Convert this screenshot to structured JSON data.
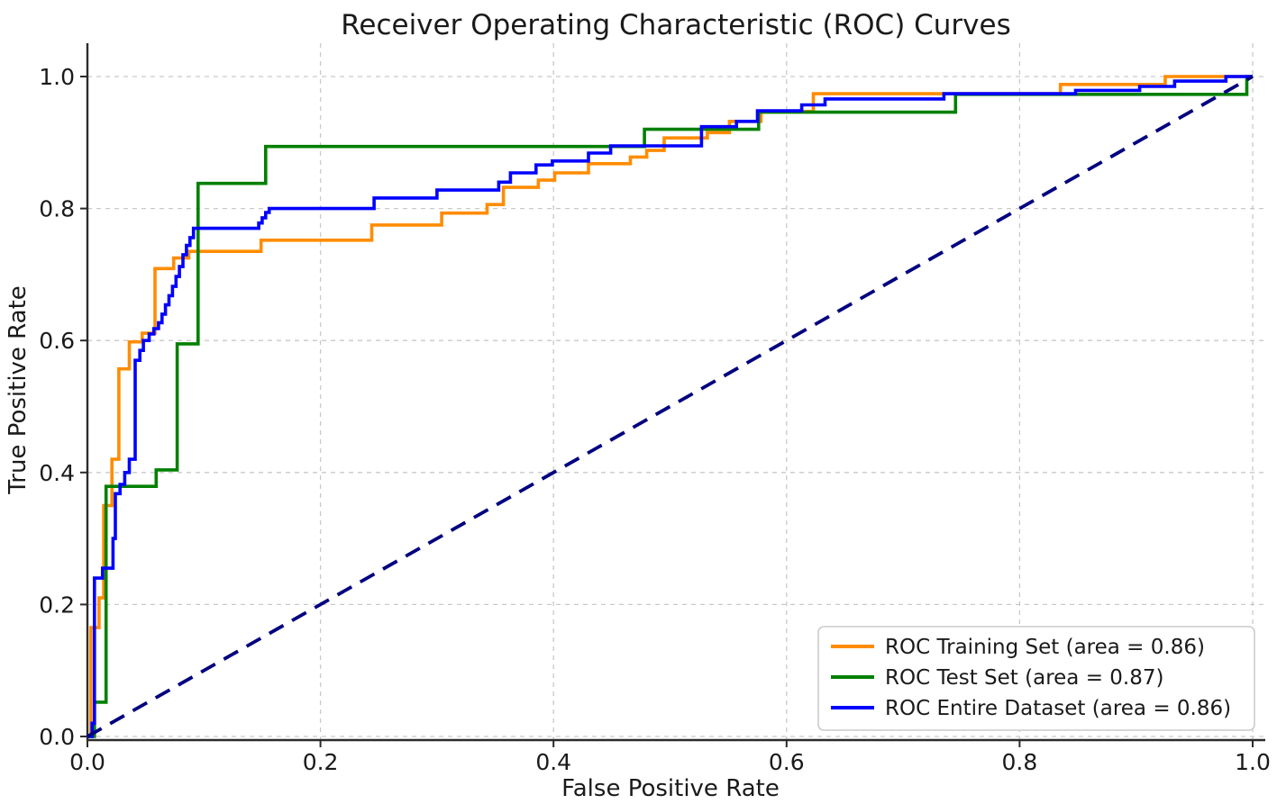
{
  "chart_data": {
    "type": "line",
    "subtype": "roc-step-curves",
    "title": "Receiver Operating Characteristic (ROC) Curves",
    "xlabel": "False Positive Rate",
    "ylabel": "True Positive Rate",
    "xlim": [
      0.0,
      1.0
    ],
    "ylim": [
      0.0,
      1.0
    ],
    "grid": true,
    "grid_color": "#c9c9c9",
    "spine_color": "#2b2b2b",
    "text_color": "#1a1a1a",
    "legend_position": "lower right",
    "legend_border_color": "#cccccc",
    "x_ticks": {
      "values": [
        0.0,
        0.2,
        0.4,
        0.6,
        0.8,
        1.0
      ],
      "labels": [
        "0.0",
        "0.2",
        "0.4",
        "0.6",
        "0.8",
        "1.0"
      ]
    },
    "y_ticks": {
      "values": [
        0.0,
        0.2,
        0.4,
        0.6,
        0.8,
        1.0
      ],
      "labels": [
        "0.0",
        "0.2",
        "0.4",
        "0.6",
        "0.8",
        "1.0"
      ]
    },
    "series": [
      {
        "name": "ROC Training Set (area = 0.86)",
        "short_name": "roc-training-set",
        "auc": 0.86,
        "color": "#ff8c00",
        "points": [
          [
            0,
            0
          ],
          [
            0.003,
            0
          ],
          [
            0.003,
            0.165
          ],
          [
            0.01,
            0.165
          ],
          [
            0.01,
            0.21
          ],
          [
            0.014,
            0.21
          ],
          [
            0.014,
            0.35
          ],
          [
            0.021,
            0.35
          ],
          [
            0.021,
            0.42
          ],
          [
            0.027,
            0.42
          ],
          [
            0.027,
            0.557
          ],
          [
            0.036,
            0.557
          ],
          [
            0.036,
            0.598
          ],
          [
            0.047,
            0.598
          ],
          [
            0.047,
            0.611
          ],
          [
            0.058,
            0.611
          ],
          [
            0.058,
            0.709
          ],
          [
            0.074,
            0.709
          ],
          [
            0.074,
            0.725
          ],
          [
            0.087,
            0.725
          ],
          [
            0.087,
            0.735
          ],
          [
            0.149,
            0.735
          ],
          [
            0.149,
            0.752
          ],
          [
            0.244,
            0.752
          ],
          [
            0.244,
            0.775
          ],
          [
            0.304,
            0.775
          ],
          [
            0.304,
            0.793
          ],
          [
            0.343,
            0.793
          ],
          [
            0.343,
            0.806
          ],
          [
            0.357,
            0.806
          ],
          [
            0.357,
            0.832
          ],
          [
            0.387,
            0.832
          ],
          [
            0.387,
            0.843
          ],
          [
            0.401,
            0.843
          ],
          [
            0.401,
            0.854
          ],
          [
            0.43,
            0.854
          ],
          [
            0.43,
            0.868
          ],
          [
            0.466,
            0.868
          ],
          [
            0.466,
            0.878
          ],
          [
            0.48,
            0.878
          ],
          [
            0.48,
            0.888
          ],
          [
            0.495,
            0.888
          ],
          [
            0.495,
            0.907
          ],
          [
            0.532,
            0.907
          ],
          [
            0.532,
            0.915
          ],
          [
            0.551,
            0.915
          ],
          [
            0.551,
            0.932
          ],
          [
            0.578,
            0.932
          ],
          [
            0.578,
            0.947
          ],
          [
            0.623,
            0.947
          ],
          [
            0.623,
            0.974
          ],
          [
            0.835,
            0.974
          ],
          [
            0.835,
            0.988
          ],
          [
            0.925,
            0.988
          ],
          [
            0.925,
            1.0
          ],
          [
            1.0,
            1.0
          ]
        ]
      },
      {
        "name": "ROC Test Set (area = 0.87)",
        "short_name": "roc-test-set",
        "auc": 0.87,
        "color": "#008000",
        "points": [
          [
            0,
            0
          ],
          [
            0.006,
            0
          ],
          [
            0.006,
            0.052
          ],
          [
            0.016,
            0.052
          ],
          [
            0.016,
            0.379
          ],
          [
            0.059,
            0.379
          ],
          [
            0.059,
            0.404
          ],
          [
            0.077,
            0.404
          ],
          [
            0.077,
            0.595
          ],
          [
            0.095,
            0.595
          ],
          [
            0.095,
            0.838
          ],
          [
            0.153,
            0.838
          ],
          [
            0.153,
            0.894
          ],
          [
            0.478,
            0.894
          ],
          [
            0.478,
            0.92
          ],
          [
            0.576,
            0.92
          ],
          [
            0.576,
            0.946
          ],
          [
            0.745,
            0.946
          ],
          [
            0.745,
            0.973
          ],
          [
            0.995,
            0.973
          ],
          [
            0.995,
            1.0
          ],
          [
            1.0,
            1.0
          ]
        ]
      },
      {
        "name": "ROC Entire Dataset (area = 0.86)",
        "short_name": "roc-entire-dataset",
        "auc": 0.86,
        "color": "#0000ff",
        "points": [
          [
            0,
            0
          ],
          [
            0.004,
            0
          ],
          [
            0.004,
            0.02
          ],
          [
            0.006,
            0.02
          ],
          [
            0.006,
            0.24
          ],
          [
            0.013,
            0.24
          ],
          [
            0.013,
            0.255
          ],
          [
            0.022,
            0.255
          ],
          [
            0.022,
            0.3
          ],
          [
            0.024,
            0.3
          ],
          [
            0.024,
            0.368
          ],
          [
            0.028,
            0.368
          ],
          [
            0.028,
            0.382
          ],
          [
            0.032,
            0.382
          ],
          [
            0.032,
            0.4
          ],
          [
            0.036,
            0.4
          ],
          [
            0.036,
            0.42
          ],
          [
            0.041,
            0.42
          ],
          [
            0.041,
            0.57
          ],
          [
            0.045,
            0.57
          ],
          [
            0.045,
            0.585
          ],
          [
            0.048,
            0.585
          ],
          [
            0.048,
            0.6
          ],
          [
            0.053,
            0.6
          ],
          [
            0.053,
            0.61
          ],
          [
            0.057,
            0.61
          ],
          [
            0.057,
            0.618
          ],
          [
            0.061,
            0.618
          ],
          [
            0.061,
            0.627
          ],
          [
            0.064,
            0.627
          ],
          [
            0.064,
            0.64
          ],
          [
            0.067,
            0.64
          ],
          [
            0.067,
            0.654
          ],
          [
            0.07,
            0.654
          ],
          [
            0.07,
            0.668
          ],
          [
            0.073,
            0.668
          ],
          [
            0.073,
            0.682
          ],
          [
            0.076,
            0.682
          ],
          [
            0.076,
            0.697
          ],
          [
            0.079,
            0.697
          ],
          [
            0.079,
            0.712
          ],
          [
            0.082,
            0.712
          ],
          [
            0.082,
            0.73
          ],
          [
            0.085,
            0.73
          ],
          [
            0.085,
            0.744
          ],
          [
            0.088,
            0.744
          ],
          [
            0.088,
            0.756
          ],
          [
            0.091,
            0.756
          ],
          [
            0.091,
            0.77
          ],
          [
            0.147,
            0.77
          ],
          [
            0.147,
            0.778
          ],
          [
            0.15,
            0.778
          ],
          [
            0.15,
            0.786
          ],
          [
            0.153,
            0.786
          ],
          [
            0.153,
            0.794
          ],
          [
            0.156,
            0.794
          ],
          [
            0.156,
            0.8
          ],
          [
            0.246,
            0.8
          ],
          [
            0.246,
            0.816
          ],
          [
            0.3,
            0.816
          ],
          [
            0.3,
            0.828
          ],
          [
            0.353,
            0.828
          ],
          [
            0.353,
            0.84
          ],
          [
            0.363,
            0.84
          ],
          [
            0.363,
            0.854
          ],
          [
            0.385,
            0.854
          ],
          [
            0.385,
            0.866
          ],
          [
            0.399,
            0.866
          ],
          [
            0.399,
            0.872
          ],
          [
            0.43,
            0.872
          ],
          [
            0.43,
            0.884
          ],
          [
            0.449,
            0.884
          ],
          [
            0.449,
            0.895
          ],
          [
            0.527,
            0.895
          ],
          [
            0.527,
            0.924
          ],
          [
            0.557,
            0.924
          ],
          [
            0.557,
            0.932
          ],
          [
            0.575,
            0.932
          ],
          [
            0.575,
            0.948
          ],
          [
            0.613,
            0.948
          ],
          [
            0.613,
            0.957
          ],
          [
            0.633,
            0.957
          ],
          [
            0.633,
            0.966
          ],
          [
            0.735,
            0.966
          ],
          [
            0.735,
            0.974
          ],
          [
            0.848,
            0.974
          ],
          [
            0.848,
            0.979
          ],
          [
            0.903,
            0.979
          ],
          [
            0.903,
            0.985
          ],
          [
            0.933,
            0.985
          ],
          [
            0.933,
            0.993
          ],
          [
            0.977,
            0.993
          ],
          [
            0.977,
            1.0
          ],
          [
            1.0,
            1.0
          ]
        ]
      }
    ],
    "reference_line": {
      "name": "chance-diagonal",
      "color": "#000080",
      "style": "dashed",
      "points": [
        [
          0,
          0
        ],
        [
          1,
          1
        ]
      ]
    }
  }
}
